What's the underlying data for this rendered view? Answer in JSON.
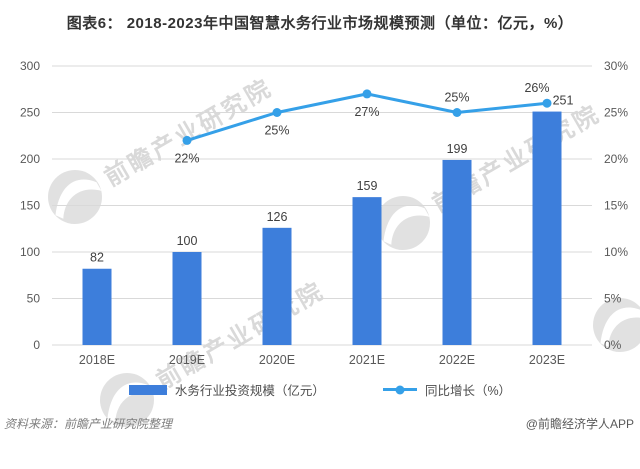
{
  "title": "图表6： 2018-2023年中国智慧水务行业市场规模预测（单位：亿元，%）",
  "chart_data": {
    "type": "bar+line combo",
    "categories": [
      "2018E",
      "2019E",
      "2020E",
      "2021E",
      "2022E",
      "2023E"
    ],
    "series": [
      {
        "name": "水务行业投资规模（亿元）",
        "type": "bar",
        "axis": "left",
        "values": [
          82,
          100,
          126,
          159,
          199,
          251
        ],
        "color": "#3D7EDB"
      },
      {
        "name": "同比增长（%）",
        "type": "line",
        "axis": "right",
        "values": [
          null,
          22,
          25,
          27,
          25,
          26
        ],
        "labels": [
          null,
          "22%",
          "25%",
          "27%",
          "25%",
          "26%"
        ],
        "label_position": [
          null,
          "below",
          "below",
          "below",
          "above",
          "above"
        ],
        "color": "#35A0E8"
      }
    ],
    "left_axis": {
      "min": 0,
      "max": 300,
      "step": 50,
      "ticks": [
        "0",
        "50",
        "100",
        "150",
        "200",
        "250",
        "300"
      ]
    },
    "right_axis": {
      "min": 0,
      "max": 30,
      "step": 5,
      "ticks": [
        "0%",
        "5%",
        "10%",
        "15%",
        "20%",
        "25%",
        "30%"
      ]
    },
    "grid": true,
    "legend_position": "bottom"
  },
  "footer": {
    "source": "资料来源：前瞻产业研究院整理",
    "credit": "@前瞻经济学人APP"
  },
  "watermark": {
    "text": "前瞻产业研究院"
  },
  "colors": {
    "bar": "#3D7EDB",
    "line": "#35A0E8",
    "grid": "#D9D9D9",
    "axis_text": "#595959",
    "data_label": "#404040",
    "title_text": "#333333",
    "source_text": "#7f7f7f",
    "watermark": "#d3d3d3"
  }
}
